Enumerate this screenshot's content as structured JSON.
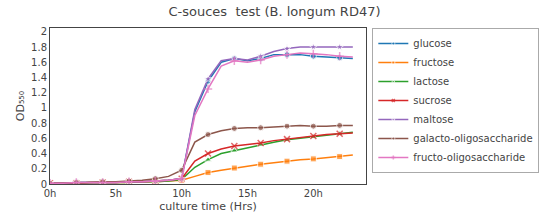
{
  "chart_data": {
    "type": "line",
    "title": "C-souces  test (B. longum RD47)",
    "xlabel": "culture time (Hrs)",
    "ylabel": "OD₅₅₀",
    "xlim": [
      0,
      24
    ],
    "ylim": [
      0,
      2.05
    ],
    "xticks": [
      {
        "value": 0,
        "label": "0h"
      },
      {
        "value": 5,
        "label": "5h"
      },
      {
        "value": 10,
        "label": "10h"
      },
      {
        "value": 15,
        "label": "15h"
      },
      {
        "value": 20,
        "label": "20h"
      }
    ],
    "yticks": [
      0,
      0.2,
      0.4,
      0.6,
      0.8,
      1,
      1.2,
      1.4,
      1.6,
      1.8,
      2
    ],
    "grid": false,
    "legend": "right",
    "x": [
      0,
      1,
      2,
      3,
      4,
      5,
      6,
      7,
      8,
      9,
      10,
      11,
      12,
      13,
      14,
      15,
      16,
      17,
      18,
      19,
      20,
      21,
      22,
      23
    ],
    "series": [
      {
        "name": "glucose",
        "marker": "circle",
        "values": [
          0.01,
          0.01,
          0.02,
          0.02,
          0.02,
          0.02,
          0.03,
          0.03,
          0.04,
          0.05,
          0.07,
          0.95,
          1.35,
          1.6,
          1.65,
          1.62,
          1.65,
          1.7,
          1.7,
          1.7,
          1.68,
          1.67,
          1.66,
          1.65
        ]
      },
      {
        "name": "fructose",
        "marker": "square",
        "values": [
          0.01,
          0.01,
          0.01,
          0.02,
          0.02,
          0.02,
          0.02,
          0.03,
          0.03,
          0.04,
          0.05,
          0.1,
          0.15,
          0.18,
          0.21,
          0.24,
          0.26,
          0.28,
          0.3,
          0.32,
          0.33,
          0.35,
          0.36,
          0.38
        ]
      },
      {
        "name": "lactose",
        "marker": "triangle",
        "values": [
          0.01,
          0.01,
          0.01,
          0.02,
          0.02,
          0.02,
          0.02,
          0.03,
          0.03,
          0.04,
          0.06,
          0.22,
          0.32,
          0.4,
          0.44,
          0.48,
          0.52,
          0.55,
          0.58,
          0.6,
          0.62,
          0.64,
          0.66,
          0.68
        ]
      },
      {
        "name": "sucrose",
        "marker": "x",
        "values": [
          0.01,
          0.01,
          0.01,
          0.02,
          0.02,
          0.02,
          0.03,
          0.03,
          0.04,
          0.05,
          0.07,
          0.3,
          0.4,
          0.46,
          0.5,
          0.52,
          0.54,
          0.57,
          0.59,
          0.61,
          0.63,
          0.65,
          0.66,
          0.67
        ]
      },
      {
        "name": "maltose",
        "marker": "star",
        "values": [
          0.01,
          0.01,
          0.02,
          0.02,
          0.02,
          0.02,
          0.03,
          0.03,
          0.04,
          0.05,
          0.07,
          0.98,
          1.38,
          1.62,
          1.65,
          1.63,
          1.68,
          1.74,
          1.78,
          1.8,
          1.8,
          1.8,
          1.8,
          1.8
        ]
      },
      {
        "name": "galacto-oligosaccharide",
        "marker": "circle",
        "values": [
          0.01,
          0.01,
          0.02,
          0.02,
          0.03,
          0.03,
          0.04,
          0.05,
          0.07,
          0.1,
          0.18,
          0.55,
          0.65,
          0.7,
          0.73,
          0.74,
          0.74,
          0.75,
          0.76,
          0.77,
          0.76,
          0.76,
          0.77,
          0.77
        ]
      },
      {
        "name": "fructo-oligosaccharide",
        "marker": "plus",
        "values": [
          0.01,
          0.01,
          0.02,
          0.02,
          0.02,
          0.02,
          0.03,
          0.03,
          0.04,
          0.05,
          0.07,
          0.9,
          1.25,
          1.55,
          1.62,
          1.6,
          1.63,
          1.68,
          1.7,
          1.72,
          1.71,
          1.7,
          1.68,
          1.67
        ]
      }
    ]
  }
}
